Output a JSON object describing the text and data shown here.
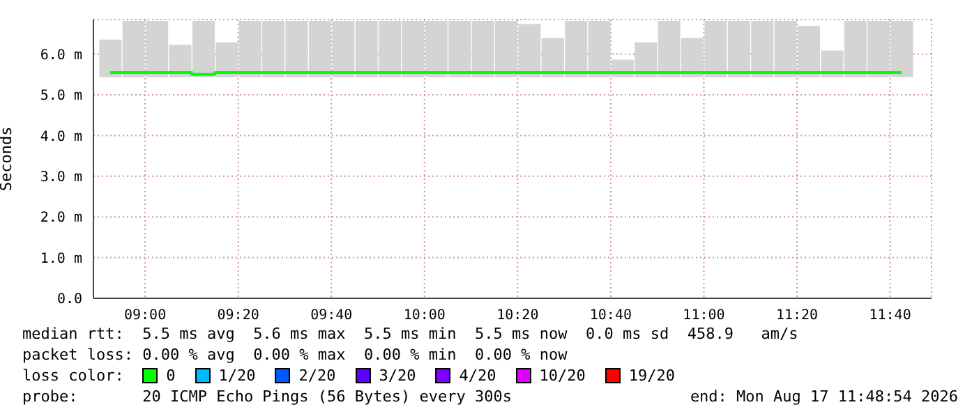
{
  "chart_data": {
    "type": "bar",
    "ylabel": "Seconds",
    "x": [
      8.875,
      8.9583,
      9.0417,
      9.125,
      9.2083,
      9.2917,
      9.375,
      9.4583,
      9.5417,
      9.625,
      9.7083,
      9.7917,
      9.875,
      9.9583,
      10.0417,
      10.125,
      10.2083,
      10.2917,
      10.375,
      10.4583,
      10.5417,
      10.625,
      10.7083,
      10.7917,
      10.875,
      10.9583,
      11.0417,
      11.125,
      11.2083,
      11.2917,
      11.375,
      11.4583,
      11.5417,
      11.625,
      11.7083
    ],
    "series": [
      {
        "color": "#d4d4d4",
        "base": [
          5.45,
          5.45,
          5.45,
          5.45,
          5.45,
          5.45,
          5.45,
          5.45,
          5.45,
          5.45,
          5.45,
          5.45,
          5.45,
          5.45,
          5.45,
          5.45,
          5.45,
          5.45,
          5.45,
          5.45,
          5.45,
          5.45,
          5.45,
          5.45,
          5.45,
          5.45,
          5.45,
          5.45,
          5.45,
          5.45,
          5.45,
          5.45,
          5.45,
          5.45,
          5.45
        ],
        "values": [
          0.89,
          1.35,
          1.35,
          0.76,
          1.35,
          0.82,
          1.35,
          1.35,
          1.35,
          1.35,
          1.35,
          1.35,
          1.35,
          1.35,
          1.35,
          1.35,
          1.35,
          1.35,
          1.27,
          0.93,
          1.35,
          1.35,
          0.4,
          0.82,
          1.35,
          0.93,
          1.35,
          1.35,
          1.35,
          1.35,
          1.23,
          0.62,
          1.35,
          1.35,
          1.35
        ]
      },
      {
        "type": "step",
        "name": "0",
        "color": "#00ff00",
        "values": [
          5.55,
          5.55,
          5.55,
          5.55,
          5.5,
          5.55,
          5.55,
          5.55,
          5.55,
          5.55,
          5.55,
          5.55,
          5.55,
          5.55,
          5.55,
          5.55,
          5.55,
          5.55,
          5.55,
          5.55,
          5.55,
          5.55,
          5.55,
          5.55,
          5.55,
          5.55,
          5.55,
          5.55,
          5.55,
          5.55,
          5.55,
          5.55,
          5.55,
          5.55,
          5.55
        ]
      },
      {
        "type": "step",
        "name": "1/20",
        "color": "#00b8ff",
        "values": [
          null,
          null,
          null,
          null,
          null,
          null,
          null,
          null,
          null,
          null,
          null,
          null,
          null,
          null,
          null,
          null,
          null,
          null,
          null,
          null,
          null,
          null,
          null,
          null,
          null,
          null,
          null,
          null,
          null,
          null,
          null,
          null,
          null,
          null,
          null
        ]
      },
      {
        "type": "step",
        "name": "2/20",
        "color": "#0059ff",
        "values": [
          null,
          null,
          null,
          null,
          null,
          null,
          null,
          null,
          null,
          null,
          null,
          null,
          null,
          null,
          null,
          null,
          null,
          null,
          null,
          null,
          null,
          null,
          null,
          null,
          null,
          null,
          null,
          null,
          null,
          null,
          null,
          null,
          null,
          null,
          null
        ]
      },
      {
        "type": "step",
        "name": "3/20",
        "color": "#5e00ff",
        "values": [
          null,
          null,
          null,
          null,
          null,
          null,
          null,
          null,
          null,
          null,
          null,
          null,
          null,
          null,
          null,
          null,
          null,
          null,
          null,
          null,
          null,
          null,
          null,
          null,
          null,
          null,
          null,
          null,
          null,
          null,
          null,
          null,
          null,
          null,
          null
        ]
      },
      {
        "type": "step",
        "name": "4/20",
        "color": "#7e00ff",
        "values": [
          null,
          null,
          null,
          null,
          null,
          null,
          null,
          null,
          null,
          null,
          null,
          null,
          null,
          null,
          null,
          null,
          null,
          null,
          null,
          null,
          null,
          null,
          null,
          null,
          null,
          null,
          null,
          null,
          null,
          null,
          null,
          null,
          null,
          null,
          null
        ]
      },
      {
        "type": "step",
        "name": "10/20",
        "color": "#dd00ff",
        "values": [
          null,
          null,
          null,
          null,
          null,
          null,
          null,
          null,
          null,
          null,
          null,
          null,
          null,
          null,
          null,
          null,
          null,
          null,
          null,
          null,
          null,
          null,
          null,
          null,
          null,
          null,
          null,
          null,
          null,
          null,
          null,
          null,
          null,
          null,
          null
        ]
      },
      {
        "type": "step",
        "name": "19/20",
        "color": "#ff0000",
        "values": [
          null,
          null,
          null,
          null,
          null,
          null,
          null,
          null,
          null,
          null,
          null,
          null,
          null,
          null,
          null,
          null,
          null,
          null,
          null,
          null,
          null,
          null,
          null,
          null,
          null,
          null,
          null,
          null,
          null,
          null,
          null,
          null,
          null,
          null,
          null
        ]
      }
    ],
    "xlim": [
      8.815,
      11.815
    ],
    "xticks": [
      {
        "value": 9,
        "label": "09:00"
      },
      {
        "value": 9.3333,
        "label": "09:20"
      },
      {
        "value": 9.6667,
        "label": "09:40"
      },
      {
        "value": 10,
        "label": "10:00"
      },
      {
        "value": 10.3333,
        "label": "10:20"
      },
      {
        "value": 10.6667,
        "label": "10:40"
      },
      {
        "value": 11,
        "label": "11:00"
      },
      {
        "value": 11.3333,
        "label": "11:20"
      },
      {
        "value": 11.6667,
        "label": "11:40"
      }
    ],
    "ylim": [
      0,
      6.85
    ],
    "yticks": [
      {
        "value": 0,
        "label": "0.0"
      },
      {
        "value": 1,
        "label": "1.0 m"
      },
      {
        "value": 2,
        "label": "2.0 m"
      },
      {
        "value": 3,
        "label": "3.0 m"
      },
      {
        "value": 4,
        "label": "4.0 m"
      },
      {
        "value": 5,
        "label": "5.0 m"
      },
      {
        "value": 6,
        "label": "6.0 m"
      }
    ],
    "grid": true,
    "legend": "bottom",
    "legend_title": "loss color:",
    "annotations": [
      "median rtt:  5.5 ms avg  5.6 ms max  5.5 ms min  5.5 ms now  0.0 ms sd  458.9   am/s",
      "packet loss: 0.00 % avg  0.00 % max  0.00 % min  0.00 % now",
      "probe:       20 ICMP Echo Pings (56 Bytes) every 300s",
      "end: Mon Aug 17 11:48:54 2026"
    ]
  }
}
